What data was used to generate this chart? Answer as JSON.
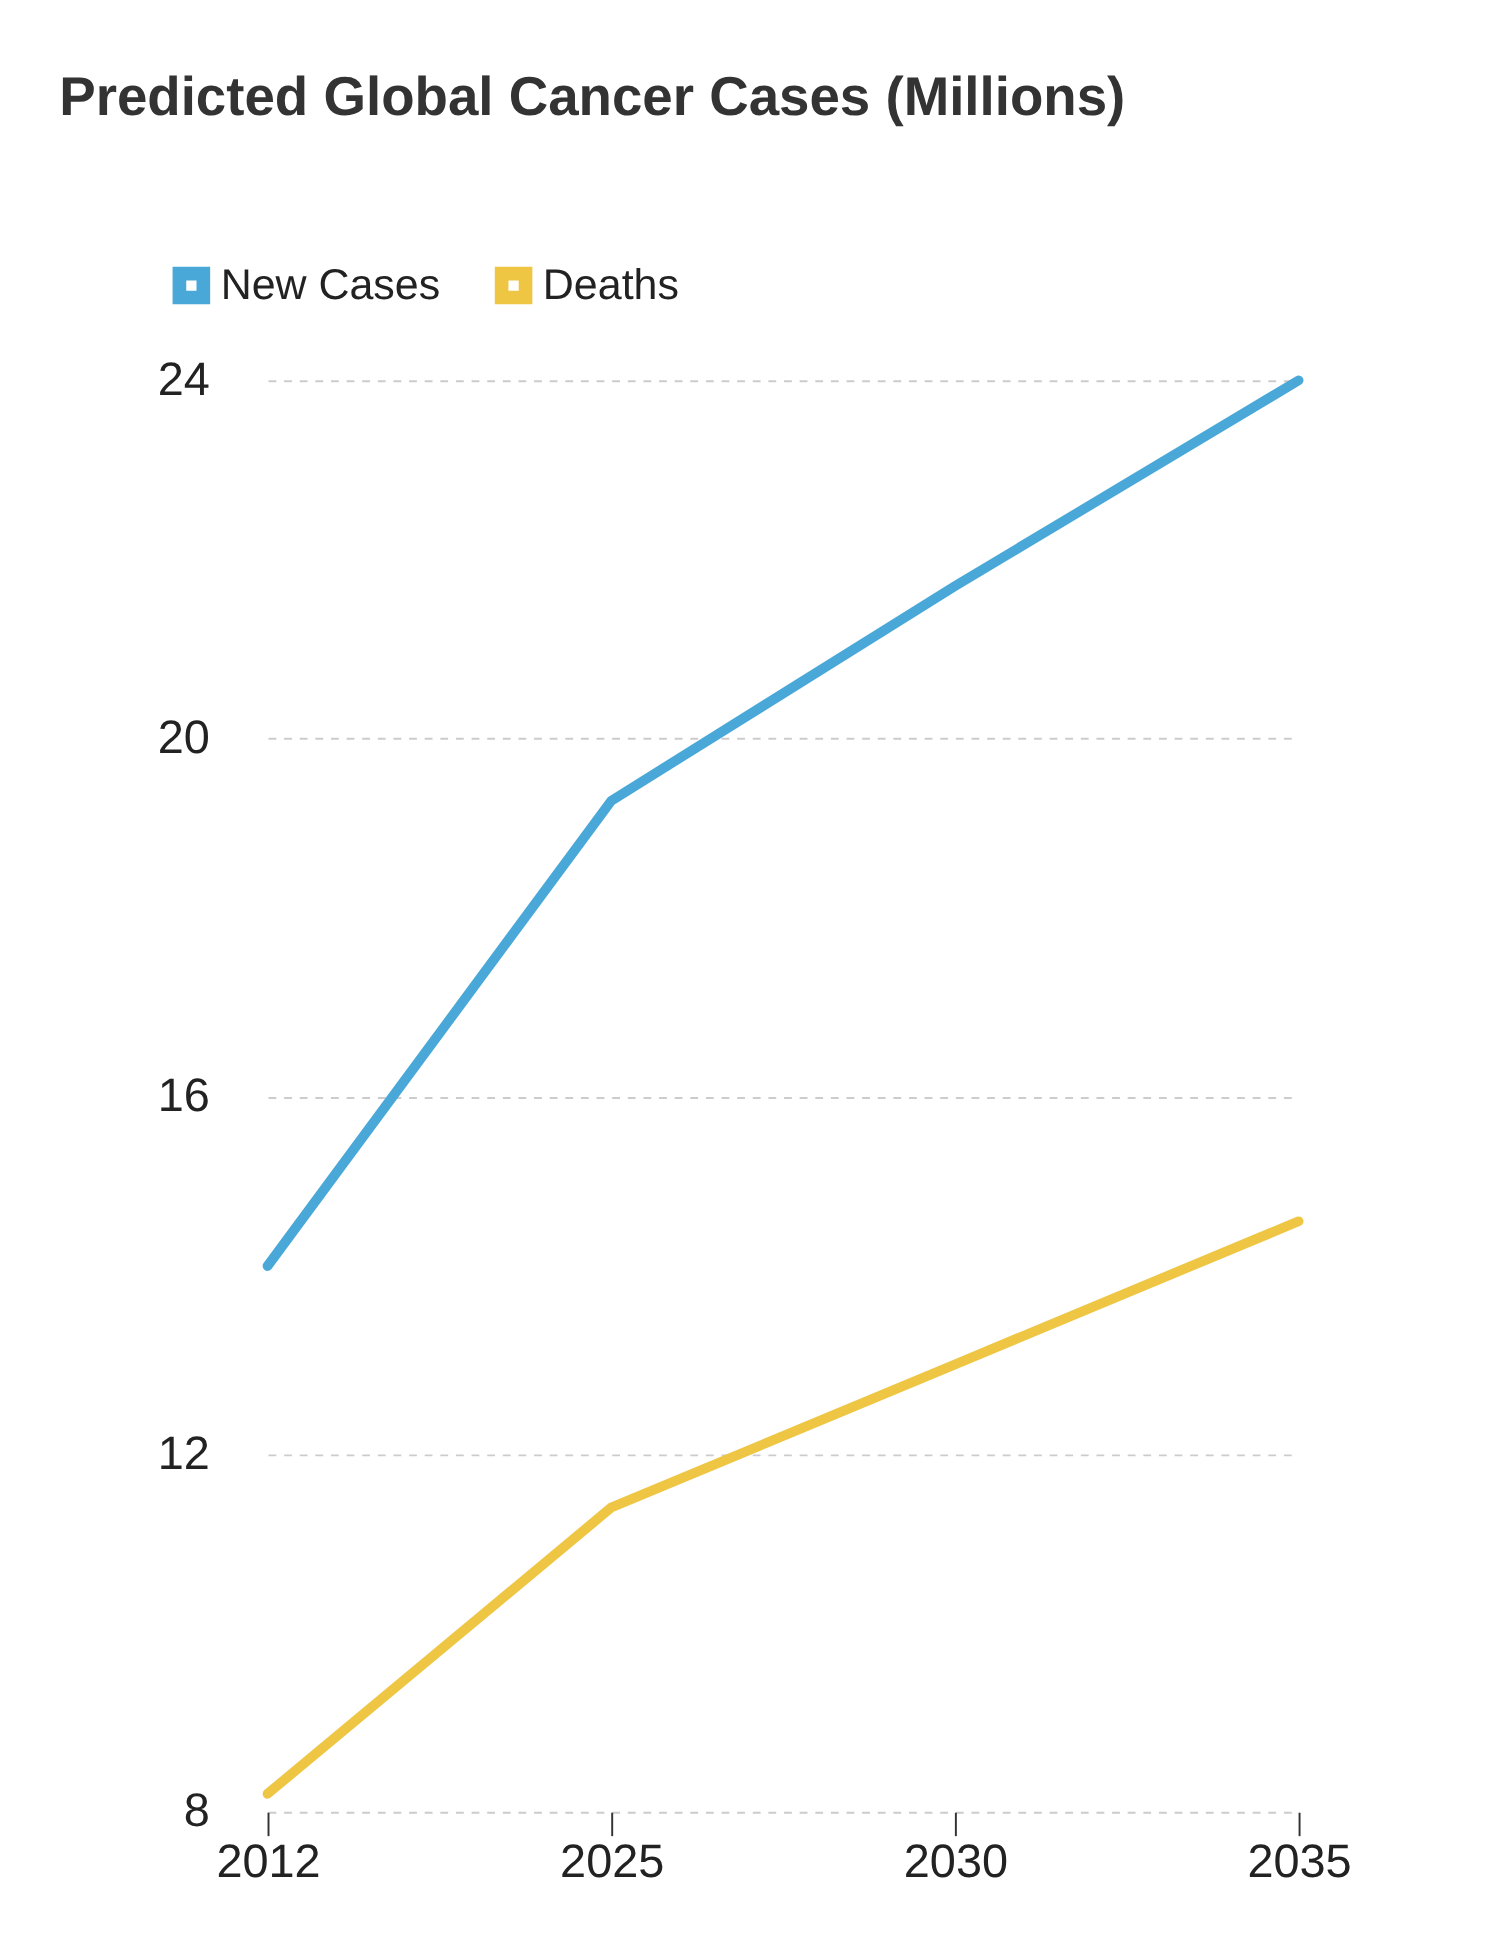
{
  "chart_data": {
    "type": "line",
    "title": "Predicted Global Cancer Cases (Millions)",
    "categories": [
      "2012",
      "2025",
      "2030",
      "2035"
    ],
    "series": [
      {
        "name": "New Cases",
        "color": "#4aa8d8",
        "values": [
          14.1,
          19.3,
          21.7,
          24.0
        ]
      },
      {
        "name": "Deaths",
        "color": "#eec643",
        "values": [
          8.2,
          11.4,
          13.0,
          14.6
        ]
      }
    ],
    "ylim": [
      8,
      24
    ],
    "yticks": [
      8,
      12,
      16,
      20,
      24
    ],
    "grid": "y",
    "legend": "top left",
    "marker": "none",
    "line_style": "solid"
  }
}
